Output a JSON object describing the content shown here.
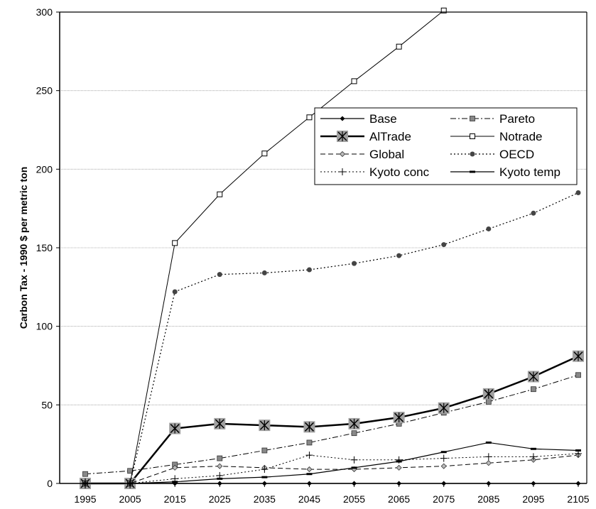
{
  "chart_data": {
    "type": "line",
    "title": "",
    "xlabel": "",
    "ylabel": "Carbon Tax - 1990 $ per metric ton",
    "x": [
      1995,
      2005,
      2015,
      2025,
      2035,
      2045,
      2055,
      2065,
      2075,
      2085,
      2095,
      2105
    ],
    "ylim": [
      0,
      300
    ],
    "yticks": [
      0,
      50,
      100,
      150,
      200,
      250,
      300
    ],
    "grid": true,
    "legend_position": "upper-right",
    "series": [
      {
        "name": "Base",
        "values": [
          0,
          0,
          0,
          0,
          0,
          0,
          0,
          0,
          0,
          0,
          0,
          0
        ],
        "marker": "diamond",
        "dash": "solid",
        "width": 1.2
      },
      {
        "name": "Pareto",
        "values": [
          6,
          8,
          12,
          16,
          21,
          26,
          32,
          38,
          45,
          52,
          60,
          69
        ],
        "marker": "square-filled",
        "dash": "dashdot",
        "width": 1
      },
      {
        "name": "AlTrade",
        "values": [
          0,
          0,
          35,
          38,
          37,
          36,
          38,
          42,
          48,
          57,
          68,
          81
        ],
        "marker": "star-box",
        "dash": "solid",
        "width": 2.5
      },
      {
        "name": "Notrade",
        "values": [
          0,
          0,
          153,
          184,
          210,
          233,
          256,
          278,
          301,
          null,
          null,
          null
        ],
        "marker": "square-open",
        "dash": "solid",
        "width": 1
      },
      {
        "name": "Global",
        "values": [
          0,
          0,
          10,
          11,
          10,
          9,
          9,
          10,
          11,
          13,
          15,
          18
        ],
        "marker": "diamond-open",
        "dash": "dashed",
        "width": 1
      },
      {
        "name": "OECD",
        "values": [
          0,
          0,
          122,
          133,
          134,
          136,
          140,
          145,
          152,
          162,
          172,
          185
        ],
        "marker": "circle",
        "dash": "dotted",
        "width": 1.2
      },
      {
        "name": "Kyoto conc",
        "values": [
          0,
          0,
          3,
          5,
          9,
          18,
          15,
          15,
          16,
          17,
          17,
          19
        ],
        "marker": "plus",
        "dash": "dotted",
        "width": 1
      },
      {
        "name": "Kyoto temp",
        "values": [
          0,
          0,
          1,
          3,
          4,
          6,
          10,
          14,
          20,
          26,
          22,
          21
        ],
        "marker": "dash",
        "dash": "solid",
        "width": 1.2
      }
    ]
  }
}
